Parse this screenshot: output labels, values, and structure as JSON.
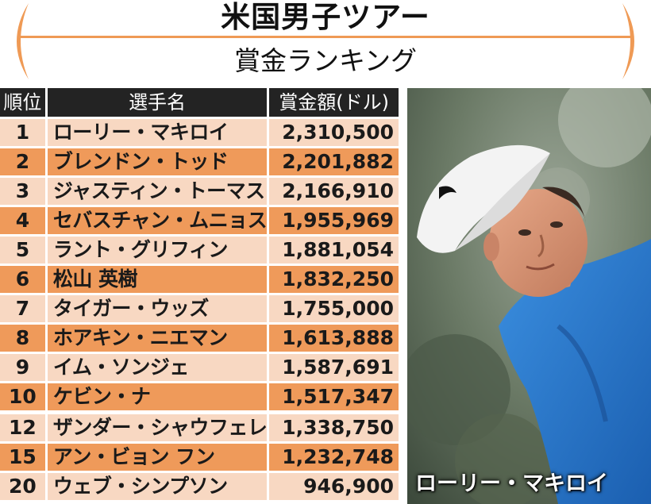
{
  "header": {
    "title": "米国男子ツアー",
    "subtitle": "賞金ランキング",
    "accent_color": "#ef9a55"
  },
  "table": {
    "columns": [
      "順位",
      "選手名",
      "賞金額(ドル)"
    ],
    "rows": [
      {
        "rank": "1",
        "name": "ローリー・マキロイ",
        "money": "2,310,500"
      },
      {
        "rank": "2",
        "name": "ブレンドン・トッド",
        "money": "2,201,882"
      },
      {
        "rank": "3",
        "name": "ジャスティン・トーマス",
        "money": "2,166,910"
      },
      {
        "rank": "4",
        "name": "セバスチャン・ムニョス",
        "money": "1,955,969"
      },
      {
        "rank": "5",
        "name": "ラント・グリフィン",
        "money": "1,881,054"
      },
      {
        "rank": "6",
        "name": "松山 英樹",
        "money": "1,832,250"
      },
      {
        "rank": "7",
        "name": "タイガー・ウッズ",
        "money": "1,755,000"
      },
      {
        "rank": "8",
        "name": "ホアキン・ニエマン",
        "money": "1,613,888"
      },
      {
        "rank": "9",
        "name": "イム・ソンジェ",
        "money": "1,587,691"
      },
      {
        "rank": "10",
        "name": "ケビン・ナ",
        "money": "1,517,347"
      },
      {
        "rank": "12",
        "name": "ザンダー・シャウフェレ",
        "money": "1,338,750"
      },
      {
        "rank": "15",
        "name": "アン・ビョン フン",
        "money": "1,232,748"
      },
      {
        "rank": "20",
        "name": "ウェブ・シンプソン",
        "money": "946,900"
      }
    ],
    "header_bg": "#232323",
    "row_light": "#f8d8c2",
    "row_dark": "#ef9a5a"
  },
  "photo": {
    "caption": "ローリー・マキロイ"
  }
}
